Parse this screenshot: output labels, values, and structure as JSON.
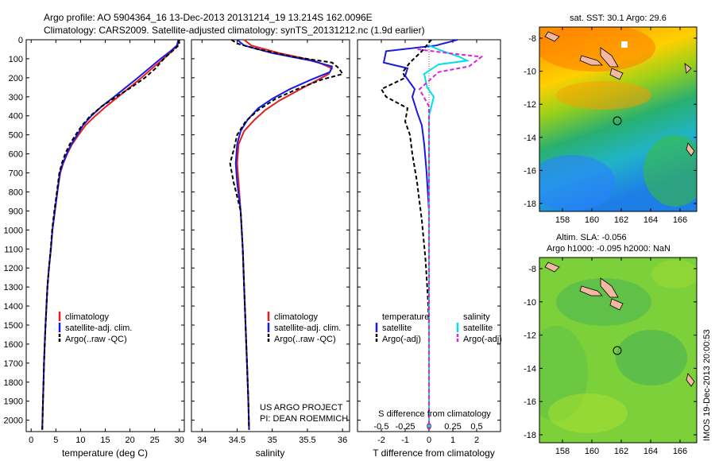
{
  "header": {
    "line1": "Argo profile: AO 5904364_16 13-Dec-2013 20131214_19 13.214S 162.0096E",
    "line2": "Climatology: CARS2009. Satellite-adjusted climatology: synTS_20131212.nc (1.9d earlier)"
  },
  "side_label": "IMOS 19-Dec-2013 20:00:53",
  "colors": {
    "climatology": "#e02020",
    "satellite": "#1a1ae0",
    "argo": "#000000",
    "sal_satellite": "#00e0e8",
    "sal_argo": "#e020e0"
  },
  "chart_data": [
    {
      "id": "temperature",
      "type": "line",
      "xlabel": "temperature (deg C)",
      "ylabel": "",
      "xlim": [
        -1,
        31
      ],
      "ylim": [
        0,
        2060
      ],
      "yreversed": true,
      "xticks": [
        0,
        5,
        10,
        15,
        20,
        25,
        30
      ],
      "xticklabels": [
        "0",
        "5",
        "10",
        "15",
        "20",
        "25",
        "30"
      ],
      "yticks": [
        0,
        100,
        200,
        300,
        400,
        500,
        600,
        700,
        800,
        900,
        1000,
        1100,
        1200,
        1300,
        1400,
        1500,
        1600,
        1700,
        1800,
        1900,
        2000
      ],
      "legend": [
        "climatology",
        "satellite-adj. clim.",
        "Argo(..raw -QC)"
      ],
      "series": [
        {
          "name": "climatology",
          "style": "solid",
          "color": "#e02020",
          "points": [
            [
              30.0,
              0
            ],
            [
              29.6,
              30
            ],
            [
              28.5,
              60
            ],
            [
              26.8,
              100
            ],
            [
              24.5,
              150
            ],
            [
              22.3,
              200
            ],
            [
              20.0,
              250
            ],
            [
              17.6,
              300
            ],
            [
              15.2,
              350
            ],
            [
              13.0,
              400
            ],
            [
              11.0,
              450
            ],
            [
              9.6,
              500
            ],
            [
              8.3,
              550
            ],
            [
              7.3,
              600
            ],
            [
              6.5,
              650
            ],
            [
              5.9,
              700
            ],
            [
              5.3,
              800
            ],
            [
              4.8,
              900
            ],
            [
              4.3,
              1000
            ],
            [
              4.0,
              1100
            ],
            [
              3.6,
              1200
            ],
            [
              3.3,
              1300
            ],
            [
              3.1,
              1400
            ],
            [
              2.9,
              1500
            ],
            [
              2.75,
              1600
            ],
            [
              2.6,
              1700
            ],
            [
              2.5,
              1800
            ],
            [
              2.4,
              1900
            ],
            [
              2.3,
              2000
            ],
            [
              2.25,
              2050
            ]
          ]
        },
        {
          "name": "satellite-adj. clim.",
          "style": "solid",
          "color": "#1a1ae0",
          "points": [
            [
              29.8,
              0
            ],
            [
              29.5,
              30
            ],
            [
              28.2,
              60
            ],
            [
              26.2,
              100
            ],
            [
              23.9,
              150
            ],
            [
              21.6,
              200
            ],
            [
              19.2,
              250
            ],
            [
              16.8,
              300
            ],
            [
              14.3,
              350
            ],
            [
              12.2,
              400
            ],
            [
              10.5,
              450
            ],
            [
              9.3,
              500
            ],
            [
              8.1,
              550
            ],
            [
              7.2,
              600
            ],
            [
              6.4,
              650
            ],
            [
              5.8,
              700
            ],
            [
              5.3,
              800
            ],
            [
              4.8,
              900
            ],
            [
              4.3,
              1000
            ],
            [
              4.0,
              1100
            ],
            [
              3.6,
              1200
            ],
            [
              3.3,
              1300
            ],
            [
              3.1,
              1400
            ],
            [
              2.9,
              1500
            ],
            [
              2.75,
              1600
            ],
            [
              2.6,
              1700
            ],
            [
              2.5,
              1800
            ],
            [
              2.4,
              1900
            ],
            [
              2.3,
              2000
            ],
            [
              2.25,
              2050
            ]
          ]
        },
        {
          "name": "Argo(..raw -QC)",
          "style": "dashed",
          "color": "#000000",
          "points": [
            [
              29.9,
              0
            ],
            [
              30.0,
              25
            ],
            [
              29.0,
              50
            ],
            [
              27.7,
              80
            ],
            [
              26.5,
              110
            ],
            [
              25.2,
              150
            ],
            [
              23.0,
              200
            ],
            [
              20.3,
              250
            ],
            [
              17.2,
              300
            ],
            [
              14.3,
              350
            ],
            [
              12.0,
              400
            ],
            [
              10.3,
              450
            ],
            [
              9.0,
              500
            ],
            [
              7.8,
              550
            ],
            [
              6.9,
              600
            ],
            [
              6.2,
              650
            ],
            [
              5.7,
              700
            ],
            [
              5.2,
              800
            ],
            [
              4.7,
              900
            ],
            [
              4.25,
              1000
            ],
            [
              3.95,
              1100
            ],
            [
              3.6,
              1200
            ],
            [
              3.3,
              1300
            ],
            [
              3.1,
              1400
            ],
            [
              2.9,
              1500
            ],
            [
              2.75,
              1600
            ],
            [
              2.6,
              1700
            ],
            [
              2.5,
              1800
            ],
            [
              2.4,
              1900
            ],
            [
              2.3,
              2000
            ],
            [
              2.25,
              2050
            ]
          ]
        }
      ],
      "annotations": []
    },
    {
      "id": "salinity",
      "type": "line",
      "xlabel": "salinity",
      "ylabel": "",
      "xlim": [
        33.85,
        36.1
      ],
      "ylim": [
        0,
        2060
      ],
      "yreversed": true,
      "xticks": [
        34,
        34.5,
        35,
        35.5,
        36
      ],
      "xticklabels": [
        "34",
        "34.5",
        "35",
        "35.5",
        "36"
      ],
      "legend": [
        "climatology",
        "satellite-adj. clim.",
        "Argo(..raw -QC)"
      ],
      "series": [
        {
          "name": "climatology",
          "style": "solid",
          "color": "#e02020",
          "points": [
            [
              34.6,
              0
            ],
            [
              34.7,
              30
            ],
            [
              35.1,
              70
            ],
            [
              35.6,
              110
            ],
            [
              35.85,
              150
            ],
            [
              35.8,
              180
            ],
            [
              35.6,
              220
            ],
            [
              35.35,
              270
            ],
            [
              35.1,
              320
            ],
            [
              34.9,
              370
            ],
            [
              34.75,
              420
            ],
            [
              34.6,
              480
            ],
            [
              34.52,
              550
            ],
            [
              34.5,
              650
            ],
            [
              34.52,
              750
            ],
            [
              34.55,
              900
            ],
            [
              34.58,
              1100
            ],
            [
              34.6,
              1300
            ],
            [
              34.62,
              1500
            ],
            [
              34.64,
              1700
            ],
            [
              34.66,
              1900
            ],
            [
              34.67,
              2050
            ]
          ]
        },
        {
          "name": "satellite-adj. clim.",
          "style": "solid",
          "color": "#1a1ae0",
          "points": [
            [
              34.5,
              0
            ],
            [
              34.6,
              30
            ],
            [
              35.0,
              70
            ],
            [
              35.55,
              110
            ],
            [
              35.85,
              140
            ],
            [
              35.82,
              170
            ],
            [
              35.55,
              210
            ],
            [
              35.25,
              260
            ],
            [
              35.0,
              310
            ],
            [
              34.8,
              360
            ],
            [
              34.65,
              420
            ],
            [
              34.55,
              480
            ],
            [
              34.5,
              550
            ],
            [
              34.48,
              650
            ],
            [
              34.5,
              750
            ],
            [
              34.55,
              900
            ],
            [
              34.58,
              1100
            ],
            [
              34.6,
              1300
            ],
            [
              34.62,
              1500
            ],
            [
              34.64,
              1700
            ],
            [
              34.66,
              1900
            ],
            [
              34.67,
              2050
            ]
          ]
        },
        {
          "name": "Argo(..raw -QC)",
          "style": "dashed",
          "color": "#000000",
          "points": [
            [
              34.42,
              0
            ],
            [
              34.5,
              20
            ],
            [
              34.8,
              50
            ],
            [
              35.3,
              90
            ],
            [
              35.85,
              120
            ],
            [
              35.95,
              150
            ],
            [
              36.0,
              180
            ],
            [
              35.7,
              210
            ],
            [
              35.35,
              260
            ],
            [
              35.05,
              310
            ],
            [
              34.8,
              370
            ],
            [
              34.62,
              430
            ],
            [
              34.5,
              500
            ],
            [
              34.45,
              580
            ],
            [
              34.4,
              650
            ],
            [
              34.45,
              750
            ],
            [
              34.55,
              900
            ],
            [
              34.58,
              1100
            ],
            [
              34.6,
              1300
            ],
            [
              34.62,
              1500
            ],
            [
              34.64,
              1700
            ],
            [
              34.66,
              1900
            ],
            [
              34.67,
              2050
            ]
          ]
        }
      ],
      "annotations": [
        "US ARGO PROJECT",
        "PI: DEAN ROEMMICH"
      ]
    },
    {
      "id": "difference",
      "type": "line",
      "xlabel": "T difference from climatology",
      "xlabel_top": "S difference from climatology",
      "xlim": [
        -3,
        3
      ],
      "ylim": [
        0,
        2060
      ],
      "yreversed": true,
      "xticks": [
        -2,
        -1,
        0,
        1,
        2
      ],
      "xticklabels": [
        "-2",
        "-1",
        "0",
        "1",
        "2"
      ],
      "sticks": [
        "-0.5",
        "-0.25",
        "0",
        "0.25",
        "0.5"
      ],
      "legend_groups": [
        {
          "title": "temperature",
          "entries": [
            "satellite",
            "Argo(-adj)"
          ]
        },
        {
          "title": "salinity",
          "entries": [
            "satellite",
            "Argo(-adj)"
          ]
        }
      ],
      "series": [
        {
          "name": "T satellite",
          "style": "solid",
          "color": "#1a1ae0",
          "points": [
            [
              1.2,
              0
            ],
            [
              0.3,
              30
            ],
            [
              -1.8,
              60
            ],
            [
              -1.9,
              120
            ],
            [
              -0.9,
              150
            ],
            [
              -1.0,
              190
            ],
            [
              -0.6,
              260
            ],
            [
              -0.7,
              300
            ],
            [
              -0.5,
              380
            ],
            [
              -0.3,
              450
            ],
            [
              -0.2,
              550
            ],
            [
              -0.1,
              700
            ],
            [
              0.0,
              900
            ],
            [
              0.0,
              2050
            ]
          ]
        },
        {
          "name": "T Argo(-adj)",
          "style": "dashed",
          "color": "#000000",
          "points": [
            [
              0.1,
              0
            ],
            [
              -0.3,
              60
            ],
            [
              -0.8,
              120
            ],
            [
              -1.1,
              170
            ],
            [
              -1.0,
              200
            ],
            [
              -2.0,
              260
            ],
            [
              -1.8,
              300
            ],
            [
              -0.9,
              360
            ],
            [
              -1.0,
              430
            ],
            [
              -0.8,
              500
            ],
            [
              -0.7,
              600
            ],
            [
              -0.5,
              750
            ],
            [
              -0.3,
              950
            ],
            [
              -0.15,
              1150
            ],
            [
              -0.05,
              1350
            ],
            [
              0.0,
              1500
            ],
            [
              0.0,
              2050
            ]
          ]
        },
        {
          "name": "S satellite",
          "style": "solid",
          "color": "#00e0e8",
          "points": [
            [
              0.0,
              30
            ],
            [
              0.12,
              55
            ],
            [
              0.32,
              90
            ],
            [
              0.4,
              110
            ],
            [
              0.1,
              130
            ],
            [
              -0.05,
              180
            ],
            [
              -0.02,
              250
            ],
            [
              0.05,
              300
            ],
            [
              0.0,
              400
            ],
            [
              0.0,
              2050
            ]
          ]
        },
        {
          "name": "S Argo(-adj)",
          "style": "dashed",
          "color": "#e020e0",
          "points": [
            [
              -0.12,
              50
            ],
            [
              0.2,
              70
            ],
            [
              0.55,
              90
            ],
            [
              0.42,
              140
            ],
            [
              0.1,
              170
            ],
            [
              -0.1,
              260
            ],
            [
              0.0,
              350
            ],
            [
              0.0,
              2050
            ]
          ]
        }
      ]
    }
  ],
  "maps": {
    "top": {
      "title": "sat. SST: 30.1 Argo: 29.6",
      "yticks": [
        "-8",
        "-10",
        "-12",
        "-14",
        "-16",
        "-18"
      ],
      "xticks": [
        "158",
        "160",
        "162",
        "164",
        "166"
      ]
    },
    "bottom": {
      "title1": "Altim. SLA: -0.056",
      "title2": "Argo h1000: -0.095 h2000: NaN",
      "yticks": [
        "-8",
        "-10",
        "-12",
        "-14",
        "-16",
        "-18"
      ],
      "xticks": [
        "158",
        "160",
        "162",
        "164",
        "166"
      ]
    }
  }
}
